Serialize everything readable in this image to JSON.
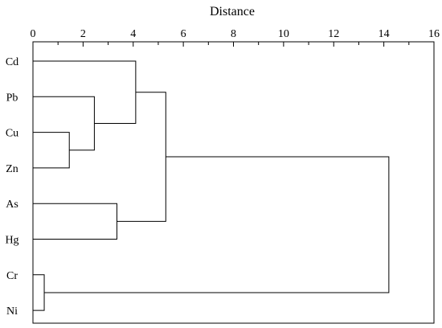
{
  "chart_data": {
    "type": "dendrogram",
    "title": "Distance",
    "xlabel": "",
    "ylabel": "",
    "xlim": [
      0,
      16
    ],
    "x_ticks": [
      "0",
      "2",
      "4",
      "6",
      "8",
      "10",
      "12",
      "14",
      "16"
    ],
    "grid": false,
    "legend": "none",
    "leaves": [
      "Cd",
      "Pb",
      "Cu",
      "Zn",
      "As",
      "Hg",
      "Cr",
      "Ni"
    ],
    "merges": [
      {
        "id": "m1",
        "members": [
          "Cr",
          "Ni"
        ],
        "distance": 0.45
      },
      {
        "id": "m2",
        "members": [
          "Cu",
          "Zn"
        ],
        "distance": 1.45
      },
      {
        "id": "m3",
        "members": [
          "Pb",
          "m2"
        ],
        "distance": 2.45
      },
      {
        "id": "m4",
        "members": [
          "As",
          "Hg"
        ],
        "distance": 3.35
      },
      {
        "id": "m5",
        "members": [
          "Cd",
          "m3"
        ],
        "distance": 4.1
      },
      {
        "id": "m6",
        "members": [
          "m5",
          "m4"
        ],
        "distance": 5.3
      },
      {
        "id": "m7",
        "members": [
          "m6",
          "m1"
        ],
        "distance": 14.2
      }
    ]
  }
}
